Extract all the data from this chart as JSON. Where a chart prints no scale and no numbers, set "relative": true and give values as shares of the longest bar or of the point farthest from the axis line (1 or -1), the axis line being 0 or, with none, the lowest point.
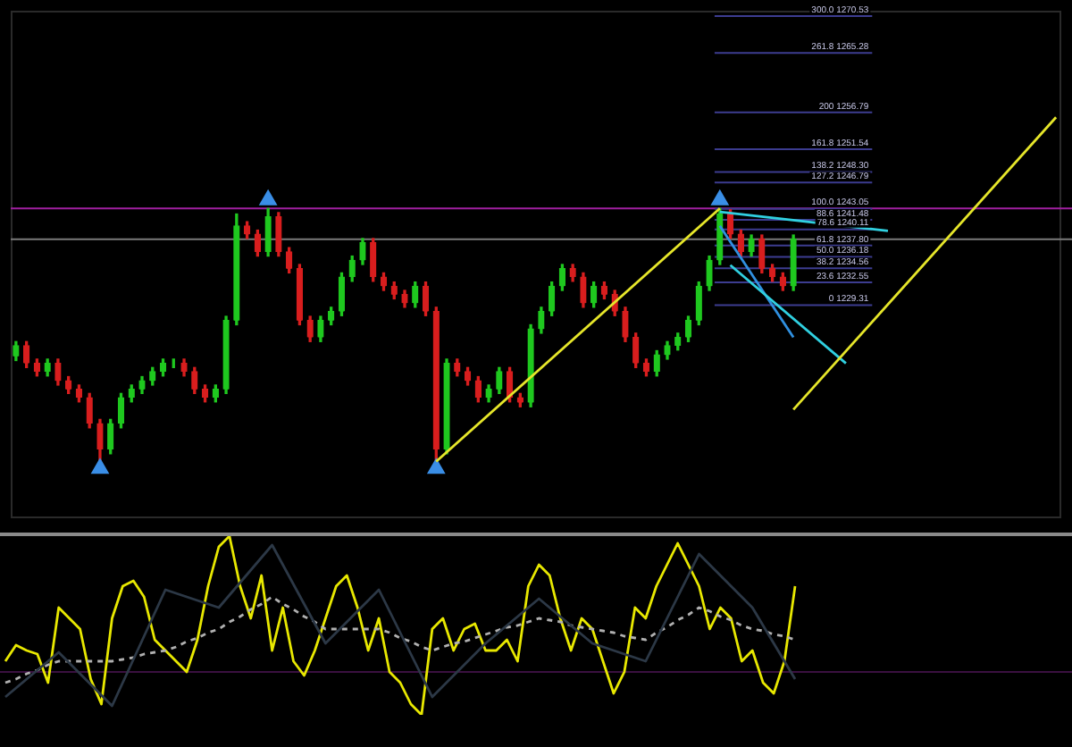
{
  "chart_data": [
    {
      "type": "candlestick",
      "categories": [
        null,
        null,
        null,
        null,
        null,
        null,
        null,
        null,
        null,
        null,
        null,
        null,
        null,
        null,
        null,
        null,
        null,
        null,
        null,
        null,
        null,
        null,
        null,
        null,
        null,
        null,
        null,
        null,
        null,
        null,
        null,
        null,
        null,
        null,
        null,
        null,
        null,
        null,
        null,
        null,
        null,
        null,
        null,
        null,
        null,
        null,
        null,
        null,
        null,
        null,
        null,
        null,
        null,
        null,
        null,
        null,
        null,
        null,
        null,
        null,
        null,
        null,
        null,
        null,
        null,
        null,
        null,
        null,
        null,
        null,
        null,
        null,
        null,
        null,
        null,
        null,
        null,
        null,
        null,
        null,
        null,
        null,
        null,
        null,
        null,
        null,
        null,
        null,
        null,
        null,
        null,
        null,
        null,
        null,
        null,
        null,
        null,
        null,
        null,
        null
      ],
      "ohlc": [
        [
          1222.0,
          1224.1,
          1221.4,
          1223.5
        ],
        [
          1223.5,
          1224.1,
          1220.4,
          1221.0
        ],
        [
          1221.0,
          1221.6,
          1219.2,
          1219.8
        ],
        [
          1219.8,
          1221.6,
          1219.2,
          1221.0
        ],
        [
          1221.0,
          1221.6,
          1217.9,
          1218.5
        ],
        [
          1218.5,
          1219.1,
          1216.7,
          1217.3
        ],
        [
          1217.3,
          1217.9,
          1215.5,
          1216.1
        ],
        [
          1216.1,
          1216.7,
          1211.8,
          1212.4
        ],
        [
          1212.4,
          1213.0,
          1207.0,
          1208.7
        ],
        [
          1208.7,
          1213.0,
          1208.1,
          1212.4
        ],
        [
          1212.4,
          1216.7,
          1211.8,
          1216.1
        ],
        [
          1216.1,
          1217.9,
          1215.5,
          1217.3
        ],
        [
          1217.3,
          1219.1,
          1216.7,
          1218.5
        ],
        [
          1218.5,
          1220.4,
          1217.9,
          1219.8
        ],
        [
          1219.8,
          1221.6,
          1219.2,
          1221.0
        ],
        [
          1221.0,
          1221.6,
          1220.4,
          1221.0
        ],
        [
          1221.0,
          1221.6,
          1219.2,
          1219.8
        ],
        [
          1219.8,
          1220.4,
          1216.7,
          1217.3
        ],
        [
          1217.3,
          1217.9,
          1215.5,
          1216.1
        ],
        [
          1216.1,
          1217.9,
          1215.5,
          1217.3
        ],
        [
          1217.3,
          1227.7,
          1216.7,
          1227.1
        ],
        [
          1227.1,
          1242.3,
          1226.5,
          1240.6
        ],
        [
          1240.6,
          1241.2,
          1238.8,
          1239.4
        ],
        [
          1239.4,
          1240.0,
          1236.3,
          1236.9
        ],
        [
          1236.9,
          1243.1,
          1236.3,
          1241.9
        ],
        [
          1241.9,
          1242.5,
          1236.3,
          1236.9
        ],
        [
          1236.9,
          1237.5,
          1233.9,
          1234.5
        ],
        [
          1234.5,
          1235.1,
          1226.5,
          1227.1
        ],
        [
          1227.1,
          1227.7,
          1224.1,
          1224.7
        ],
        [
          1224.7,
          1227.7,
          1224.1,
          1227.1
        ],
        [
          1227.1,
          1229.0,
          1226.5,
          1228.4
        ],
        [
          1228.4,
          1233.9,
          1227.8,
          1233.3
        ],
        [
          1233.3,
          1236.3,
          1232.7,
          1235.7
        ],
        [
          1235.7,
          1238.8,
          1235.1,
          1238.2
        ],
        [
          1238.2,
          1238.8,
          1232.7,
          1233.3
        ],
        [
          1233.3,
          1233.9,
          1231.4,
          1232.0
        ],
        [
          1232.0,
          1232.6,
          1230.2,
          1230.8
        ],
        [
          1230.8,
          1231.4,
          1229.0,
          1229.6
        ],
        [
          1229.6,
          1232.6,
          1229.0,
          1232.0
        ],
        [
          1232.0,
          1232.6,
          1227.8,
          1228.4
        ],
        [
          1228.4,
          1229.0,
          1207.0,
          1208.7
        ],
        [
          1208.7,
          1221.6,
          1208.1,
          1221.0
        ],
        [
          1221.0,
          1221.6,
          1219.2,
          1219.8
        ],
        [
          1219.8,
          1220.4,
          1217.9,
          1218.5
        ],
        [
          1218.5,
          1219.1,
          1215.5,
          1216.1
        ],
        [
          1216.1,
          1217.9,
          1215.5,
          1217.3
        ],
        [
          1217.3,
          1220.4,
          1216.7,
          1219.8
        ],
        [
          1219.8,
          1220.4,
          1215.5,
          1216.1
        ],
        [
          1216.1,
          1216.7,
          1214.8,
          1215.4
        ],
        [
          1215.4,
          1226.5,
          1214.8,
          1225.9
        ],
        [
          1225.9,
          1229.0,
          1225.3,
          1228.4
        ],
        [
          1228.4,
          1232.6,
          1227.8,
          1232.0
        ],
        [
          1232.0,
          1235.1,
          1231.4,
          1234.5
        ],
        [
          1234.5,
          1235.1,
          1232.7,
          1233.3
        ],
        [
          1233.3,
          1233.9,
          1229.0,
          1229.6
        ],
        [
          1229.6,
          1232.6,
          1229.0,
          1232.0
        ],
        [
          1232.0,
          1232.6,
          1230.2,
          1230.8
        ],
        [
          1230.8,
          1231.4,
          1227.8,
          1228.4
        ],
        [
          1228.4,
          1229.0,
          1224.1,
          1224.7
        ],
        [
          1224.7,
          1225.3,
          1220.4,
          1221.0
        ],
        [
          1221.0,
          1221.6,
          1219.2,
          1219.8
        ],
        [
          1219.8,
          1222.8,
          1219.2,
          1222.2
        ],
        [
          1222.2,
          1224.1,
          1221.6,
          1223.5
        ],
        [
          1223.5,
          1225.3,
          1222.9,
          1224.7
        ],
        [
          1224.7,
          1227.7,
          1224.1,
          1227.1
        ],
        [
          1227.1,
          1232.6,
          1226.5,
          1232.0
        ],
        [
          1232.0,
          1236.3,
          1231.4,
          1235.7
        ],
        [
          1235.7,
          1243.1,
          1235.1,
          1242.3
        ],
        [
          1242.3,
          1242.9,
          1238.8,
          1239.4
        ],
        [
          1239.4,
          1240.0,
          1236.3,
          1236.9
        ],
        [
          1236.9,
          1239.3,
          1236.3,
          1238.7
        ],
        [
          1238.7,
          1239.3,
          1233.9,
          1234.5
        ],
        [
          1234.5,
          1235.1,
          1232.7,
          1233.3
        ],
        [
          1233.3,
          1233.9,
          1231.4,
          1232.0
        ],
        [
          1232.0,
          1239.3,
          1231.4,
          1238.7
        ],
        null,
        null,
        null,
        null,
        null,
        null,
        null,
        null,
        null,
        null,
        null,
        null,
        null,
        null,
        null,
        null,
        null,
        null,
        null,
        null,
        null,
        null,
        null,
        null,
        null
      ],
      "colors": [
        "#1fc81f",
        "#d81e1e",
        "#d81e1e",
        "#1fc81f",
        "#d81e1e",
        "#d81e1e",
        "#d81e1e",
        "#d81e1e",
        "#d81e1e",
        "#1fc81f",
        "#1fc81f",
        "#1fc81f",
        "#1fc81f",
        "#1fc81f",
        "#1fc81f",
        "#1fc81f",
        "#d81e1e",
        "#d81e1e",
        "#d81e1e",
        "#1fc81f",
        "#1fc81f",
        "#1fc81f",
        "#d81e1e",
        "#d81e1e",
        "#1fc81f",
        "#d81e1e",
        "#d81e1e",
        "#d81e1e",
        "#d81e1e",
        "#1fc81f",
        "#1fc81f",
        "#1fc81f",
        "#1fc81f",
        "#1fc81f",
        "#d81e1e",
        "#d81e1e",
        "#d81e1e",
        "#d81e1e",
        "#1fc81f",
        "#d81e1e",
        "#d81e1e",
        "#1fc81f",
        "#d81e1e",
        "#d81e1e",
        "#d81e1e",
        "#1fc81f",
        "#1fc81f",
        "#d81e1e",
        "#d81e1e",
        "#1fc81f",
        "#1fc81f",
        "#1fc81f",
        "#1fc81f",
        "#d81e1e",
        "#d81e1e",
        "#1fc81f",
        "#d81e1e",
        "#d81e1e",
        "#d81e1e",
        "#d81e1e",
        "#d81e1e",
        "#1fc81f",
        "#1fc81f",
        "#1fc81f",
        "#1fc81f",
        "#1fc81f",
        "#1fc81f",
        "#1fc81f",
        "#d81e1e",
        "#d81e1e",
        "#1fc81f",
        "#d81e1e",
        "#d81e1e",
        "#d81e1e",
        "#1fc81f",
        null,
        null,
        null,
        null,
        null,
        null,
        null,
        null,
        null,
        null,
        null,
        null,
        null,
        null,
        null,
        null,
        null,
        null,
        null,
        null,
        null,
        null,
        null,
        null,
        null
      ],
      "ylim": [
        1198.9,
        1271.3
      ],
      "tick_labels": false,
      "grid": false,
      "legend": false,
      "series": [
        {
          "type": "line",
          "color": "#e6e62a",
          "values": [
            null,
            null,
            null,
            null,
            null,
            null,
            null,
            null,
            null,
            null,
            null,
            null,
            null,
            null,
            null,
            null,
            null,
            null,
            null,
            null,
            null,
            null,
            null,
            null,
            null,
            null,
            null,
            null,
            null,
            null,
            null,
            null,
            null,
            null,
            null,
            null,
            null,
            null,
            null,
            null,
            1207.0,
            null,
            null,
            null,
            null,
            null,
            null,
            null,
            null,
            null,
            null,
            null,
            null,
            null,
            null,
            null,
            null,
            null,
            null,
            null,
            null,
            null,
            null,
            null,
            null,
            null,
            null,
            1243.1,
            null,
            null,
            null,
            null,
            null,
            null,
            null,
            null,
            null,
            null,
            null,
            null,
            null,
            null,
            null,
            null,
            null,
            null,
            null,
            null,
            null,
            null,
            null,
            null,
            null,
            null,
            null,
            null,
            null,
            null,
            null,
            null
          ]
        },
        {
          "type": "line",
          "color": "#e6e62a",
          "values": [
            null,
            null,
            null,
            null,
            null,
            null,
            null,
            null,
            null,
            null,
            null,
            null,
            null,
            null,
            null,
            null,
            null,
            null,
            null,
            null,
            null,
            null,
            null,
            null,
            null,
            null,
            null,
            null,
            null,
            null,
            null,
            null,
            null,
            null,
            null,
            null,
            null,
            null,
            null,
            null,
            null,
            null,
            null,
            null,
            null,
            null,
            null,
            null,
            null,
            null,
            null,
            null,
            null,
            null,
            null,
            null,
            null,
            null,
            null,
            null,
            null,
            null,
            null,
            null,
            null,
            null,
            null,
            null,
            null,
            null,
            null,
            null,
            null,
            null,
            1214.4,
            null,
            null,
            null,
            null,
            null,
            null,
            null,
            null,
            null,
            null,
            null,
            null,
            null,
            null,
            null,
            null,
            null,
            null,
            null,
            null,
            null,
            null,
            null,
            null,
            1256.1
          ]
        },
        {
          "type": "line",
          "color": "#30d0e0",
          "values": [
            null,
            null,
            null,
            null,
            null,
            null,
            null,
            null,
            null,
            null,
            null,
            null,
            null,
            null,
            null,
            null,
            null,
            null,
            null,
            null,
            null,
            null,
            null,
            null,
            null,
            null,
            null,
            null,
            null,
            null,
            null,
            null,
            null,
            null,
            null,
            null,
            null,
            null,
            null,
            null,
            null,
            null,
            null,
            null,
            null,
            null,
            null,
            null,
            null,
            null,
            null,
            null,
            null,
            null,
            null,
            null,
            null,
            null,
            null,
            null,
            null,
            null,
            null,
            null,
            null,
            null,
            null,
            1242.6,
            null,
            null,
            null,
            null,
            null,
            null,
            null,
            null,
            null,
            null,
            null,
            null,
            null,
            null,
            null,
            1239.9,
            null,
            null,
            null,
            null,
            null,
            null,
            null,
            null,
            null,
            null,
            null,
            null,
            null,
            null,
            null,
            null
          ]
        },
        {
          "type": "line",
          "color": "#30d0e0",
          "values": [
            null,
            null,
            null,
            null,
            null,
            null,
            null,
            null,
            null,
            null,
            null,
            null,
            null,
            null,
            null,
            null,
            null,
            null,
            null,
            null,
            null,
            null,
            null,
            null,
            null,
            null,
            null,
            null,
            null,
            null,
            null,
            null,
            null,
            null,
            null,
            null,
            null,
            null,
            null,
            null,
            null,
            null,
            null,
            null,
            null,
            null,
            null,
            null,
            null,
            null,
            null,
            null,
            null,
            null,
            null,
            null,
            null,
            null,
            null,
            null,
            null,
            null,
            null,
            null,
            null,
            null,
            null,
            null,
            1235.0,
            null,
            null,
            null,
            null,
            null,
            null,
            null,
            null,
            null,
            null,
            1221.0,
            null,
            null,
            null,
            null,
            null,
            null,
            null,
            null,
            null,
            null,
            null,
            null,
            null,
            null,
            null,
            null,
            null,
            null,
            null,
            null
          ]
        },
        {
          "type": "line",
          "color": "#3090e0",
          "values": [
            null,
            null,
            null,
            null,
            null,
            null,
            null,
            null,
            null,
            null,
            null,
            null,
            null,
            null,
            null,
            null,
            null,
            null,
            null,
            null,
            null,
            null,
            null,
            null,
            null,
            null,
            null,
            null,
            null,
            null,
            null,
            null,
            null,
            null,
            null,
            null,
            null,
            null,
            null,
            null,
            null,
            null,
            null,
            null,
            null,
            null,
            null,
            null,
            null,
            null,
            null,
            null,
            null,
            null,
            null,
            null,
            null,
            null,
            null,
            null,
            null,
            null,
            null,
            null,
            null,
            null,
            null,
            1240.6,
            null,
            null,
            null,
            null,
            null,
            null,
            1224.7,
            null,
            null,
            null,
            null,
            null,
            null,
            null,
            null,
            null,
            null,
            null,
            null,
            null,
            null,
            null,
            null,
            null,
            null,
            null,
            null,
            null,
            null,
            null,
            null,
            null
          ]
        },
        {
          "type": "scatter",
          "color": "#3a8ee6",
          "marker": "triangle",
          "values": [
            null,
            null,
            null,
            null,
            null,
            null,
            null,
            null,
            1206.0,
            null,
            null,
            null,
            null,
            null,
            null,
            null,
            null,
            null,
            null,
            null,
            null,
            null,
            null,
            null,
            1244.3,
            null,
            null,
            null,
            null,
            null,
            null,
            null,
            null,
            null,
            null,
            null,
            null,
            null,
            null,
            null,
            1206.0,
            null,
            null,
            null,
            null,
            null,
            null,
            null,
            null,
            null,
            null,
            null,
            null,
            null,
            null,
            null,
            null,
            null,
            null,
            null,
            null,
            null,
            null,
            null,
            null,
            null,
            null,
            1244.3,
            null,
            null,
            null,
            null,
            null,
            null,
            null,
            null,
            null,
            null,
            null,
            null,
            null,
            null,
            null,
            null,
            null,
            null,
            null,
            null,
            null,
            null,
            null,
            null,
            null,
            null,
            null,
            null,
            null,
            null,
            null,
            null
          ]
        }
      ],
      "ref_lines": [
        {
          "axis": "y",
          "value": 1238.7,
          "color": "#7a7a7a"
        },
        {
          "axis": "y",
          "value": 1243.1,
          "color": "#a020a0"
        },
        {
          "axis": "y",
          "value": 1270.53,
          "label": "300.0 1270.53",
          "color": "#3c3c90"
        },
        {
          "axis": "y",
          "value": 1265.28,
          "label": "261.8 1265.28",
          "color": "#3c3c90"
        },
        {
          "axis": "y",
          "value": 1256.79,
          "label": "200 1256.79",
          "color": "#3c3c90"
        },
        {
          "axis": "y",
          "value": 1251.54,
          "label": "161.8 1251.54",
          "color": "#3c3c90"
        },
        {
          "axis": "y",
          "value": 1248.3,
          "label": "138.2 1248.30",
          "color": "#3c3c90"
        },
        {
          "axis": "y",
          "value": 1246.79,
          "label": "127.2 1246.79",
          "color": "#3c3c90"
        },
        {
          "axis": "y",
          "value": 1243.05,
          "label": "100.0 1243.05",
          "color": "#3c3c90"
        },
        {
          "axis": "y",
          "value": 1241.48,
          "label": "88.6 1241.48",
          "color": "#3c3c90"
        },
        {
          "axis": "y",
          "value": 1240.11,
          "label": "78.6 1240.11",
          "color": "#3c3c90"
        },
        {
          "axis": "y",
          "value": 1237.8,
          "label": "61.8 1237.80",
          "color": "#3c3c90"
        },
        {
          "axis": "y",
          "value": 1236.18,
          "label": "50.0 1236.18",
          "color": "#3c3c90"
        },
        {
          "axis": "y",
          "value": 1234.56,
          "label": "38.2 1234.56",
          "color": "#3c3c90"
        },
        {
          "axis": "y",
          "value": 1232.55,
          "label": "23.6 1232.55",
          "color": "#3c3c90"
        },
        {
          "axis": "y",
          "value": 1229.31,
          "label": "0 1229.31",
          "color": "#3c3c90"
        }
      ]
    },
    {
      "type": "line",
      "relative": true,
      "categories": [
        null,
        null,
        null,
        null,
        null,
        null,
        null,
        null,
        null,
        null,
        null,
        null,
        null,
        null,
        null,
        null,
        null,
        null,
        null,
        null,
        null,
        null,
        null,
        null,
        null,
        null,
        null,
        null,
        null,
        null,
        null,
        null,
        null,
        null,
        null,
        null,
        null,
        null,
        null,
        null,
        null,
        null,
        null,
        null,
        null,
        null,
        null,
        null,
        null,
        null,
        null,
        null,
        null,
        null,
        null,
        null,
        null,
        null,
        null,
        null,
        null,
        null,
        null,
        null,
        null,
        null,
        null,
        null,
        null,
        null,
        null,
        null,
        null,
        null,
        null
      ],
      "tick_labels": false,
      "grid": false,
      "legend": false,
      "series": [
        {
          "color": "#2c3846",
          "values": [
            0.1,
            0.15,
            0.2,
            0.25,
            0.3,
            0.35,
            0.29,
            0.23,
            0.17,
            0.11,
            0.05,
            0.18,
            0.31,
            0.44,
            0.57,
            0.7,
            0.68,
            0.66,
            0.64,
            0.62,
            0.6,
            0.67,
            0.74,
            0.81,
            0.88,
            0.95,
            0.84,
            0.73,
            0.62,
            0.51,
            0.4,
            0.46,
            0.52,
            0.58,
            0.64,
            0.7,
            0.58,
            0.46,
            0.34,
            0.22,
            0.1,
            0.16,
            0.22,
            0.28,
            0.34,
            0.4,
            0.45,
            0.5,
            0.55,
            0.6,
            0.65,
            0.6,
            0.55,
            0.5,
            0.45,
            0.4,
            0.38,
            0.36,
            0.34,
            0.32,
            0.3,
            0.42,
            0.54,
            0.66,
            0.78,
            0.9,
            0.84,
            0.78,
            0.72,
            0.66,
            0.6,
            0.5,
            0.4,
            0.3,
            0.2
          ]
        },
        {
          "color": "#b0b0b0",
          "line_style": "dashed",
          "values": [
            0.18,
            0.2,
            0.23,
            0.25,
            0.28,
            0.3,
            0.3,
            0.3,
            0.3,
            0.3,
            0.3,
            0.31,
            0.32,
            0.34,
            0.35,
            0.36,
            0.38,
            0.41,
            0.43,
            0.46,
            0.48,
            0.52,
            0.55,
            0.59,
            0.62,
            0.66,
            0.62,
            0.59,
            0.55,
            0.52,
            0.48,
            0.48,
            0.48,
            0.48,
            0.48,
            0.48,
            0.46,
            0.43,
            0.41,
            0.38,
            0.36,
            0.38,
            0.4,
            0.41,
            0.43,
            0.45,
            0.47,
            0.49,
            0.5,
            0.52,
            0.54,
            0.53,
            0.52,
            0.5,
            0.49,
            0.48,
            0.47,
            0.46,
            0.44,
            0.43,
            0.42,
            0.46,
            0.49,
            0.53,
            0.56,
            0.6,
            0.58,
            0.55,
            0.53,
            0.5,
            0.48,
            0.47,
            0.45,
            0.44,
            0.42
          ]
        },
        {
          "color": "#e8e800",
          "values": [
            0.3,
            0.39,
            0.36,
            0.34,
            0.18,
            0.6,
            0.54,
            0.48,
            0.2,
            0.06,
            0.54,
            0.72,
            0.75,
            0.66,
            0.42,
            0.36,
            0.3,
            0.24,
            0.42,
            0.72,
            0.94,
            1.0,
            0.72,
            0.54,
            0.78,
            0.36,
            0.6,
            0.3,
            0.22,
            0.36,
            0.54,
            0.72,
            0.78,
            0.6,
            0.36,
            0.54,
            0.24,
            0.18,
            0.06,
            0.0,
            0.48,
            0.54,
            0.36,
            0.48,
            0.51,
            0.36,
            0.36,
            0.42,
            0.3,
            0.72,
            0.84,
            0.78,
            0.54,
            0.36,
            0.54,
            0.48,
            0.3,
            0.12,
            0.24,
            0.6,
            0.54,
            0.72,
            0.84,
            0.96,
            0.84,
            0.72,
            0.48,
            0.6,
            0.54,
            0.3,
            0.36,
            0.18,
            0.12,
            0.3,
            0.72
          ]
        }
      ],
      "ref_lines": [
        {
          "axis": "y",
          "value": 0.24,
          "color": "#3a1040"
        }
      ]
    }
  ]
}
